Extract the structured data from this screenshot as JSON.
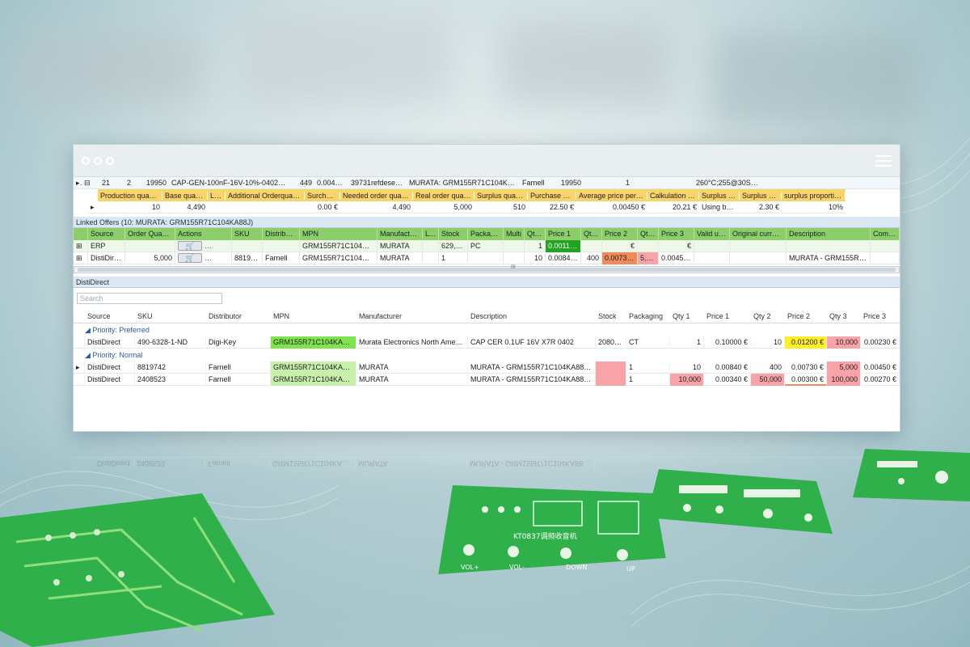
{
  "main_row": [
    "21",
    "2",
    "19950",
    "CAP-GEN-100nF-16V-10%-0402-X...",
    "449",
    "0.00450 €",
    "39731refdesed01",
    "MURATA: GRM155R71C104KA88J",
    "Farnell",
    "19950",
    "1",
    "260°C;255@30SEC"
  ],
  "summary_headers": [
    "Production quantity",
    "Base quantity",
    "Loss",
    "Additional Orderquantity",
    "Surcharge",
    "Needed order quantity",
    "Real order quantity",
    "Surplus quantity",
    "Purchase costs",
    "Average price per unit",
    "Calkulation sum",
    "Surplus type",
    "Surplus sum",
    "surplus proportion"
  ],
  "summary_values": [
    "10",
    "4,490",
    "",
    "",
    "0.00 €",
    "4,490",
    "5,000",
    "510",
    "22.50 €",
    "0.00450 €",
    "20.21 €",
    "Using by us",
    "2.30 €",
    "10%"
  ],
  "linked_title": "Linked Offers (10: MURATA: GRM155R71C104KA88J)",
  "linked_headers": [
    "Source",
    "Order Quantity",
    "Actions",
    "SKU",
    "Distributor",
    "MPN",
    "Manufacturer",
    "LTD",
    "Stock",
    "Packaging",
    "Multi",
    "Qty 1",
    "Price 1",
    "Qty 2",
    "Price 2",
    "Qty 3",
    "Price 3",
    "Valid until",
    "Original currency",
    "Description",
    "Comment"
  ],
  "linked_rows": [
    {
      "source": "ERP",
      "order_qty": "",
      "sku": "",
      "distributor": "",
      "mpn": "GRM155R71C104KA88J",
      "manufacturer": "MURATA",
      "ltd": "",
      "stock": "629,285",
      "packaging": "PC",
      "multi": "",
      "qty1": "1",
      "price1": "0.00110 €",
      "qty2": "",
      "price2": "€",
      "qty3": "",
      "price3": "€",
      "valid": "",
      "currency": "",
      "description": "",
      "comment": ""
    },
    {
      "source": "DistiDirect",
      "order_qty": "5,000",
      "sku": "8819742",
      "distributor": "Farnell",
      "mpn": "GRM155R71C104KA88D",
      "manufacturer": "MURATA",
      "ltd": "",
      "stock": "1",
      "packaging": "",
      "multi": "",
      "qty1": "10",
      "price1": "0.00840 €",
      "qty2": "400",
      "price2": "0.00730 €",
      "qty3": "5,000",
      "price3": "0.00450 €",
      "valid": "",
      "currency": "",
      "description": "MURATA - GRM155R71...",
      "comment": ""
    }
  ],
  "scroll_grip": "III",
  "disti_title": "DistiDirect",
  "search_placeholder": "Search",
  "disti_headers": [
    "Source",
    "SKU",
    "Distributor",
    "MPN",
    "Manufacturer",
    "Description",
    "Stock",
    "Packaging",
    "Qty 1",
    "Price 1",
    "Qty 2",
    "Price 2",
    "Qty 3",
    "Price 3"
  ],
  "group_preferred": "Priority: Preferred",
  "group_normal": "Priority: Normal",
  "preferred_rows": [
    {
      "source": "DistiDirect",
      "sku": "490-6328-1-ND",
      "distributor": "Digi-Key",
      "mpn": "GRM155R71C104KA88J",
      "manufacturer": "Murata Electronics North America",
      "description": "CAP CER 0.1UF 16V X7R 0402",
      "stock": "2080989",
      "packaging": "CT",
      "qty1": "1",
      "price1": "0.10000 €",
      "qty2": "10",
      "price2": "0.01200 €",
      "qty3": "10,000",
      "price3": "0.00230 €"
    }
  ],
  "normal_rows": [
    {
      "source": "DistiDirect",
      "sku": "8819742",
      "distributor": "Farnell",
      "mpn": "GRM155R71C104KA88D",
      "manufacturer": "MURATA",
      "description": "MURATA - GRM155R71C104KA88D - K...",
      "stock": "",
      "packaging": "1",
      "qty1": "10",
      "price1": "0.00840 €",
      "qty2": "400",
      "price2": "0.00730 €",
      "qty3": "5,000",
      "price3": "0.00450 €"
    },
    {
      "source": "DistiDirect",
      "sku": "2408523",
      "distributor": "Farnell",
      "mpn": "GRM155R71C104KA88D",
      "manufacturer": "MURATA",
      "description": "MURATA - GRM155R71C104KA88D - K...",
      "stock": "",
      "packaging": "1",
      "qty1": "10,000",
      "price1": "0.00340 €",
      "qty2": "50,000",
      "price2": "0.00300 €",
      "qty3": "100,000",
      "price3": "0.00270 €"
    }
  ],
  "pcb_labels": {
    "board_label": "KT0837调频收音机",
    "vol_plus": "VOL+",
    "vol_minus": "VOL-",
    "down": "DOWN",
    "up": "UP"
  },
  "colors": {
    "header_yellow": "#f8d56a",
    "header_green": "#8ccf6a",
    "mpn_green": "#7fe24f",
    "price_yellow": "#ffef2a",
    "qty_pink": "#f7a3a8",
    "price_orange": "#f08a5a",
    "pcb_green": "#2fb04a"
  }
}
